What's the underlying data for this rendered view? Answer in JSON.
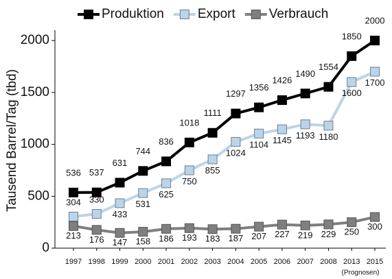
{
  "chart_data": {
    "type": "line",
    "y_label": "Tausend Barrel/Tag (tbd)",
    "annotation": "(Prognosen)",
    "categories": [
      "1997",
      "1998",
      "1999",
      "2000",
      "2001",
      "2002",
      "2003",
      "2004",
      "2005",
      "2006",
      "2007",
      "2008",
      "2013",
      "2015"
    ],
    "series": [
      {
        "name": "Produktion",
        "color": "#000000",
        "values": [
          536,
          537,
          631,
          744,
          836,
          1018,
          1111,
          1297,
          1356,
          1426,
          1490,
          1554,
          1850,
          2000
        ]
      },
      {
        "name": "Export",
        "color": "#bcd4e8",
        "values": [
          304,
          330,
          433,
          531,
          625,
          750,
          855,
          1024,
          1104,
          1145,
          1193,
          1180,
          1600,
          1700
        ]
      },
      {
        "name": "Verbrauch",
        "color": "#7f7f7f",
        "values": [
          213,
          176,
          147,
          158,
          186,
          193,
          183,
          187,
          207,
          227,
          219,
          229,
          250,
          300
        ]
      }
    ],
    "ylim": [
      0,
      2100
    ],
    "yticks": [
      0,
      500,
      1000,
      1500,
      2000
    ],
    "grid": false,
    "legend": "top"
  }
}
